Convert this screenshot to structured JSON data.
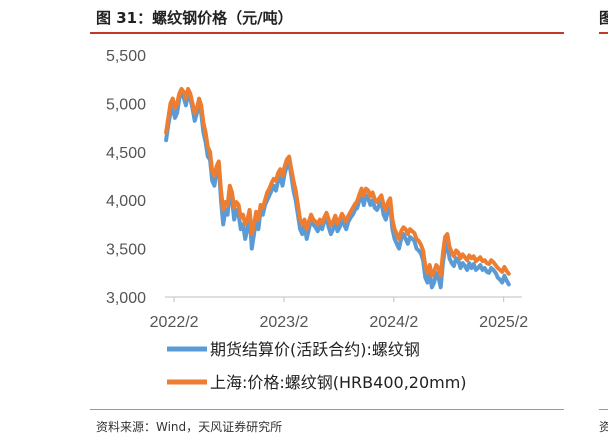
{
  "header": {
    "title": "图 31：螺纹钢价格（元/吨）",
    "right_title_fragment": "图"
  },
  "footer": {
    "source": "资料来源：Wind，天风证券研究所",
    "right_source_fragment": "资"
  },
  "chart_data": {
    "type": "line",
    "title": "螺纹钢价格（元/吨）",
    "xlabel": "",
    "ylabel": "",
    "ylim": [
      3000,
      5500
    ],
    "yticks": [
      3000,
      3500,
      4000,
      4500,
      5000,
      5500
    ],
    "ytick_labels": [
      "3,000",
      "3,500",
      "4,000",
      "4,500",
      "5,000",
      "5,500"
    ],
    "x_range": [
      2022.0,
      2025.25
    ],
    "xticks": [
      2022.083,
      2023.083,
      2024.083,
      2025.083
    ],
    "xtick_labels": [
      "2022/2",
      "2023/2",
      "2024/2",
      "2025/2"
    ],
    "colors": {
      "futures": "#5b9bd5",
      "spot": "#ed7d31"
    },
    "series": [
      {
        "name": "期货结算价(活跃合约):螺纹钢",
        "color": "#5b9bd5",
        "x": [
          2022.01,
          2022.03,
          2022.05,
          2022.07,
          2022.09,
          2022.11,
          2022.13,
          2022.15,
          2022.17,
          2022.19,
          2022.21,
          2022.23,
          2022.25,
          2022.27,
          2022.29,
          2022.31,
          2022.33,
          2022.35,
          2022.37,
          2022.39,
          2022.41,
          2022.43,
          2022.45,
          2022.47,
          2022.49,
          2022.51,
          2022.53,
          2022.55,
          2022.57,
          2022.59,
          2022.61,
          2022.63,
          2022.65,
          2022.67,
          2022.69,
          2022.71,
          2022.73,
          2022.75,
          2022.77,
          2022.79,
          2022.81,
          2022.83,
          2022.85,
          2022.87,
          2022.89,
          2022.91,
          2022.93,
          2022.95,
          2022.97,
          2022.99,
          2023.01,
          2023.03,
          2023.05,
          2023.07,
          2023.09,
          2023.11,
          2023.13,
          2023.15,
          2023.17,
          2023.19,
          2023.21,
          2023.23,
          2023.25,
          2023.27,
          2023.29,
          2023.31,
          2023.33,
          2023.35,
          2023.37,
          2023.39,
          2023.41,
          2023.43,
          2023.45,
          2023.47,
          2023.49,
          2023.51,
          2023.53,
          2023.55,
          2023.57,
          2023.59,
          2023.61,
          2023.63,
          2023.65,
          2023.67,
          2023.69,
          2023.71,
          2023.73,
          2023.75,
          2023.77,
          2023.79,
          2023.81,
          2023.83,
          2023.85,
          2023.87,
          2023.89,
          2023.91,
          2023.93,
          2023.95,
          2023.97,
          2023.99,
          2024.01,
          2024.03,
          2024.05,
          2024.07,
          2024.09,
          2024.11,
          2024.13,
          2024.15,
          2024.17,
          2024.19,
          2024.21,
          2024.23,
          2024.25,
          2024.27,
          2024.29,
          2024.31,
          2024.33,
          2024.35,
          2024.37,
          2024.39,
          2024.41,
          2024.43,
          2024.45,
          2024.47,
          2024.49,
          2024.51,
          2024.53,
          2024.55,
          2024.57,
          2024.59,
          2024.61,
          2024.63,
          2024.65,
          2024.67,
          2024.69,
          2024.71,
          2024.73,
          2024.75,
          2024.77,
          2024.79,
          2024.81,
          2024.83,
          2024.85,
          2024.87,
          2024.89,
          2024.91,
          2024.93,
          2024.95,
          2024.97,
          2024.99,
          2025.01,
          2025.03,
          2025.05,
          2025.07,
          2025.09,
          2025.11,
          2025.13
        ],
        "values": [
          4620,
          4780,
          4900,
          4980,
          4850,
          4900,
          5050,
          5120,
          5060,
          4980,
          5100,
          5050,
          4950,
          4820,
          4900,
          5000,
          4900,
          4700,
          4600,
          4450,
          4420,
          4200,
          4150,
          4300,
          4350,
          4000,
          3750,
          3900,
          3850,
          4100,
          4000,
          3800,
          3900,
          3850,
          3700,
          3750,
          3600,
          3700,
          3850,
          3500,
          3650,
          3800,
          3700,
          3900,
          3850,
          3950,
          4000,
          4050,
          4100,
          4150,
          4100,
          4200,
          4250,
          4150,
          4280,
          4350,
          4400,
          4250,
          4100,
          4000,
          3850,
          3700,
          3650,
          3750,
          3600,
          3700,
          3800,
          3750,
          3720,
          3680,
          3750,
          3700,
          3780,
          3820,
          3720,
          3650,
          3700,
          3780,
          3680,
          3720,
          3800,
          3750,
          3700,
          3780,
          3820,
          3850,
          3900,
          3920,
          4000,
          4050,
          3950,
          4050,
          4020,
          3950,
          4000,
          3920,
          3900,
          3950,
          3980,
          3850,
          3800,
          3900,
          3950,
          3700,
          3600,
          3550,
          3500,
          3600,
          3650,
          3600,
          3550,
          3620,
          3600,
          3580,
          3500,
          3480,
          3450,
          3380,
          3200,
          3150,
          3250,
          3100,
          3150,
          3250,
          3200,
          3100,
          3350,
          3500,
          3550,
          3400,
          3350,
          3320,
          3400,
          3380,
          3300,
          3350,
          3320,
          3280,
          3350,
          3300,
          3340,
          3280,
          3300,
          3330,
          3280,
          3300,
          3260,
          3250,
          3300,
          3280,
          3250,
          3200,
          3180,
          3150,
          3220,
          3170,
          3130
        ]
      },
      {
        "name": "上海:价格:螺纹钢(HRB400,20mm)",
        "color": "#ed7d31",
        "x": [
          2022.01,
          2022.03,
          2022.05,
          2022.07,
          2022.09,
          2022.11,
          2022.13,
          2022.15,
          2022.17,
          2022.19,
          2022.21,
          2022.23,
          2022.25,
          2022.27,
          2022.29,
          2022.31,
          2022.33,
          2022.35,
          2022.37,
          2022.39,
          2022.41,
          2022.43,
          2022.45,
          2022.47,
          2022.49,
          2022.51,
          2022.53,
          2022.55,
          2022.57,
          2022.59,
          2022.61,
          2022.63,
          2022.65,
          2022.67,
          2022.69,
          2022.71,
          2022.73,
          2022.75,
          2022.77,
          2022.79,
          2022.81,
          2022.83,
          2022.85,
          2022.87,
          2022.89,
          2022.91,
          2022.93,
          2022.95,
          2022.97,
          2022.99,
          2023.01,
          2023.03,
          2023.05,
          2023.07,
          2023.09,
          2023.11,
          2023.13,
          2023.15,
          2023.17,
          2023.19,
          2023.21,
          2023.23,
          2023.25,
          2023.27,
          2023.29,
          2023.31,
          2023.33,
          2023.35,
          2023.37,
          2023.39,
          2023.41,
          2023.43,
          2023.45,
          2023.47,
          2023.49,
          2023.51,
          2023.53,
          2023.55,
          2023.57,
          2023.59,
          2023.61,
          2023.63,
          2023.65,
          2023.67,
          2023.69,
          2023.71,
          2023.73,
          2023.75,
          2023.77,
          2023.79,
          2023.81,
          2023.83,
          2023.85,
          2023.87,
          2023.89,
          2023.91,
          2023.93,
          2023.95,
          2023.97,
          2023.99,
          2024.01,
          2024.03,
          2024.05,
          2024.07,
          2024.09,
          2024.11,
          2024.13,
          2024.15,
          2024.17,
          2024.19,
          2024.21,
          2024.23,
          2024.25,
          2024.27,
          2024.29,
          2024.31,
          2024.33,
          2024.35,
          2024.37,
          2024.39,
          2024.41,
          2024.43,
          2024.45,
          2024.47,
          2024.49,
          2024.51,
          2024.53,
          2024.55,
          2024.57,
          2024.59,
          2024.61,
          2024.63,
          2024.65,
          2024.67,
          2024.69,
          2024.71,
          2024.73,
          2024.75,
          2024.77,
          2024.79,
          2024.81,
          2024.83,
          2024.85,
          2024.87,
          2024.89,
          2024.91,
          2024.93,
          2024.95,
          2024.97,
          2024.99,
          2025.01,
          2025.03,
          2025.05,
          2025.07,
          2025.09,
          2025.11,
          2025.13
        ],
        "values": [
          4700,
          4850,
          5000,
          5050,
          4950,
          5000,
          5100,
          5150,
          5120,
          5050,
          5150,
          5100,
          5000,
          4900,
          4950,
          5050,
          4980,
          4800,
          4700,
          4550,
          4500,
          4300,
          4250,
          4350,
          4400,
          4100,
          3900,
          3980,
          3950,
          4150,
          4080,
          3920,
          3980,
          3950,
          3820,
          3850,
          3750,
          3800,
          3900,
          3650,
          3750,
          3880,
          3800,
          3950,
          3920,
          4000,
          4080,
          4120,
          4180,
          4220,
          4200,
          4280,
          4320,
          4250,
          4350,
          4420,
          4450,
          4320,
          4200,
          4100,
          3950,
          3800,
          3750,
          3800,
          3700,
          3780,
          3850,
          3800,
          3780,
          3750,
          3800,
          3760,
          3820,
          3870,
          3800,
          3740,
          3780,
          3840,
          3760,
          3800,
          3860,
          3820,
          3780,
          3840,
          3880,
          3920,
          3960,
          3990,
          4060,
          4120,
          4050,
          4120,
          4100,
          4040,
          4080,
          4010,
          3980,
          4020,
          4050,
          3950,
          3900,
          3980,
          4020,
          3800,
          3700,
          3650,
          3600,
          3680,
          3720,
          3700,
          3650,
          3700,
          3680,
          3660,
          3600,
          3580,
          3540,
          3480,
          3320,
          3250,
          3330,
          3220,
          3260,
          3330,
          3300,
          3220,
          3450,
          3620,
          3650,
          3520,
          3460,
          3420,
          3480,
          3460,
          3400,
          3440,
          3410,
          3380,
          3430,
          3400,
          3420,
          3370,
          3390,
          3410,
          3370,
          3380,
          3350,
          3340,
          3380,
          3360,
          3330,
          3300,
          3280,
          3260,
          3310,
          3270,
          3240
        ]
      }
    ],
    "legend": [
      {
        "label": "期货结算价(活跃合约):螺纹钢",
        "color": "#5b9bd5"
      },
      {
        "label": "上海:价格:螺纹钢(HRB400,20mm)",
        "color": "#ed7d31"
      }
    ]
  }
}
